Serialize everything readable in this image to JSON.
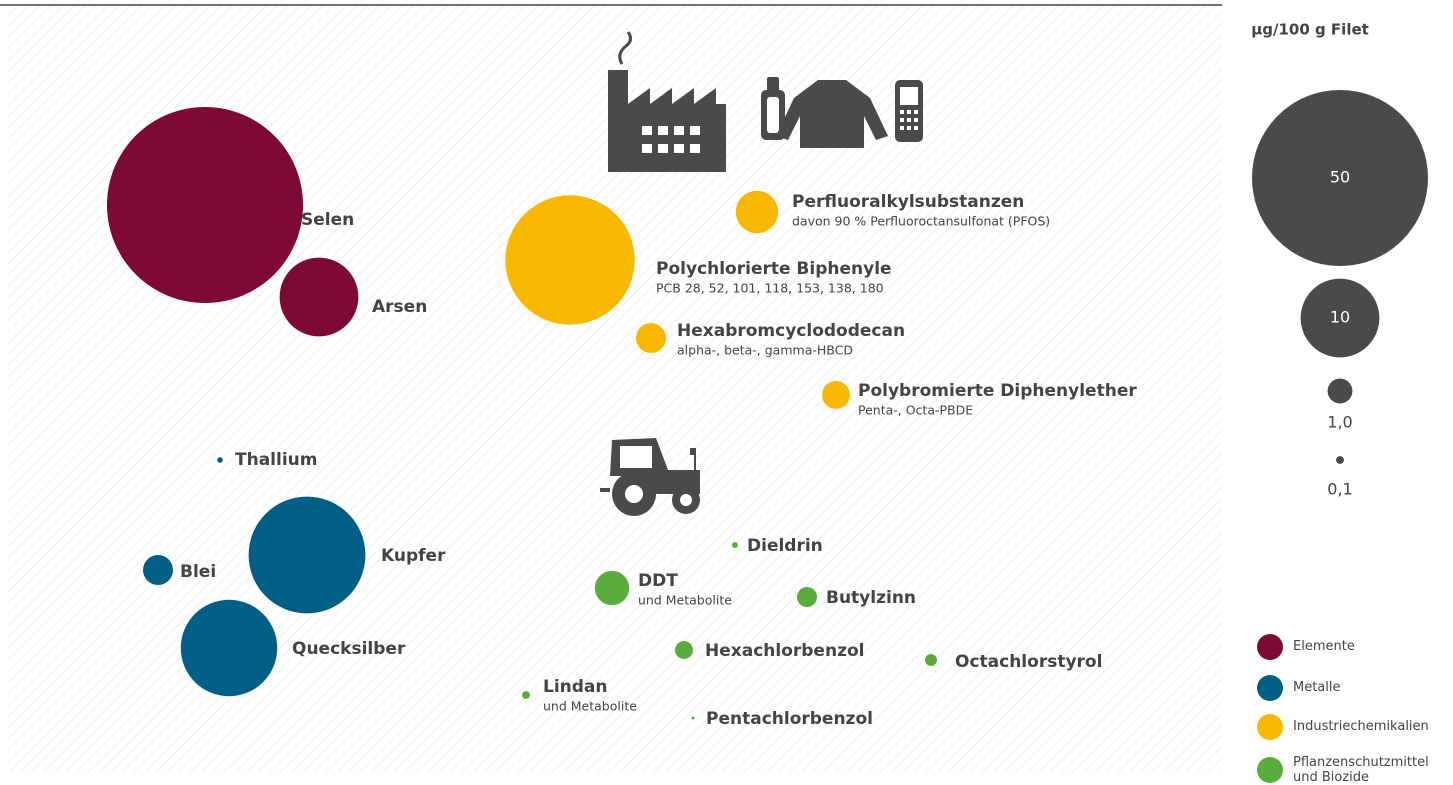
{
  "chart_data": {
    "type": "bubble",
    "size_title": "µg/100 g Filet",
    "size_legend": [
      50,
      10,
      {
        "value": 1,
        "label": "1,0"
      },
      {
        "value": 0.1,
        "label": "0,1"
      }
    ],
    "size_legend_color": "#4a4a4a",
    "series": [
      {
        "name": "Elemente",
        "color": "#7d0a35",
        "points": [
          {
            "label": "Selen",
            "value": 62
          },
          {
            "label": "Arsen",
            "value": 10
          }
        ]
      },
      {
        "name": "Metalle",
        "color": "#005f85",
        "points": [
          {
            "label": "Thallium",
            "value": 0.05
          },
          {
            "label": "Kupfer",
            "value": 22
          },
          {
            "label": "Blei",
            "value": 1.45
          },
          {
            "label": "Quecksilber",
            "value": 15
          }
        ]
      },
      {
        "name": "Industriechemikalien",
        "color": "#f9b800",
        "points": [
          {
            "label": "Perfluoralkylsubstanzen",
            "note": "davon 90 % Perfluoroctansulfonat (PFOS)",
            "value": 2.9
          },
          {
            "label": "Polychlorierte Biphenyle",
            "note": "PCB 28, 52, 101, 118, 153, 138, 180",
            "value": 27
          },
          {
            "label": "Hexabromcyclododecan",
            "note": "alpha-, beta-, gamma-HBCD",
            "value": 1.45
          },
          {
            "label": "Polybromierte Diphenylether",
            "note": "Penta-, Octa-PBDE",
            "value": 1.26
          }
        ]
      },
      {
        "name": "Pflanzenschutzmittel und Biozide",
        "color": "#5aad3c",
        "points": [
          {
            "label": "Dieldrin",
            "value": 0.06
          },
          {
            "label": "DDT",
            "note": "und Metabolite",
            "value": 1.9
          },
          {
            "label": "Butylzinn",
            "value": 0.65
          },
          {
            "label": "Hexachlorbenzol",
            "value": 0.52
          },
          {
            "label": "Octachlorstyrol",
            "value": 0.23
          },
          {
            "label": "Lindan",
            "note": "und Metabolite",
            "value": 0.1
          },
          {
            "label": "Pentachlorbenzol",
            "value": 0.015
          }
        ]
      }
    ]
  }
}
